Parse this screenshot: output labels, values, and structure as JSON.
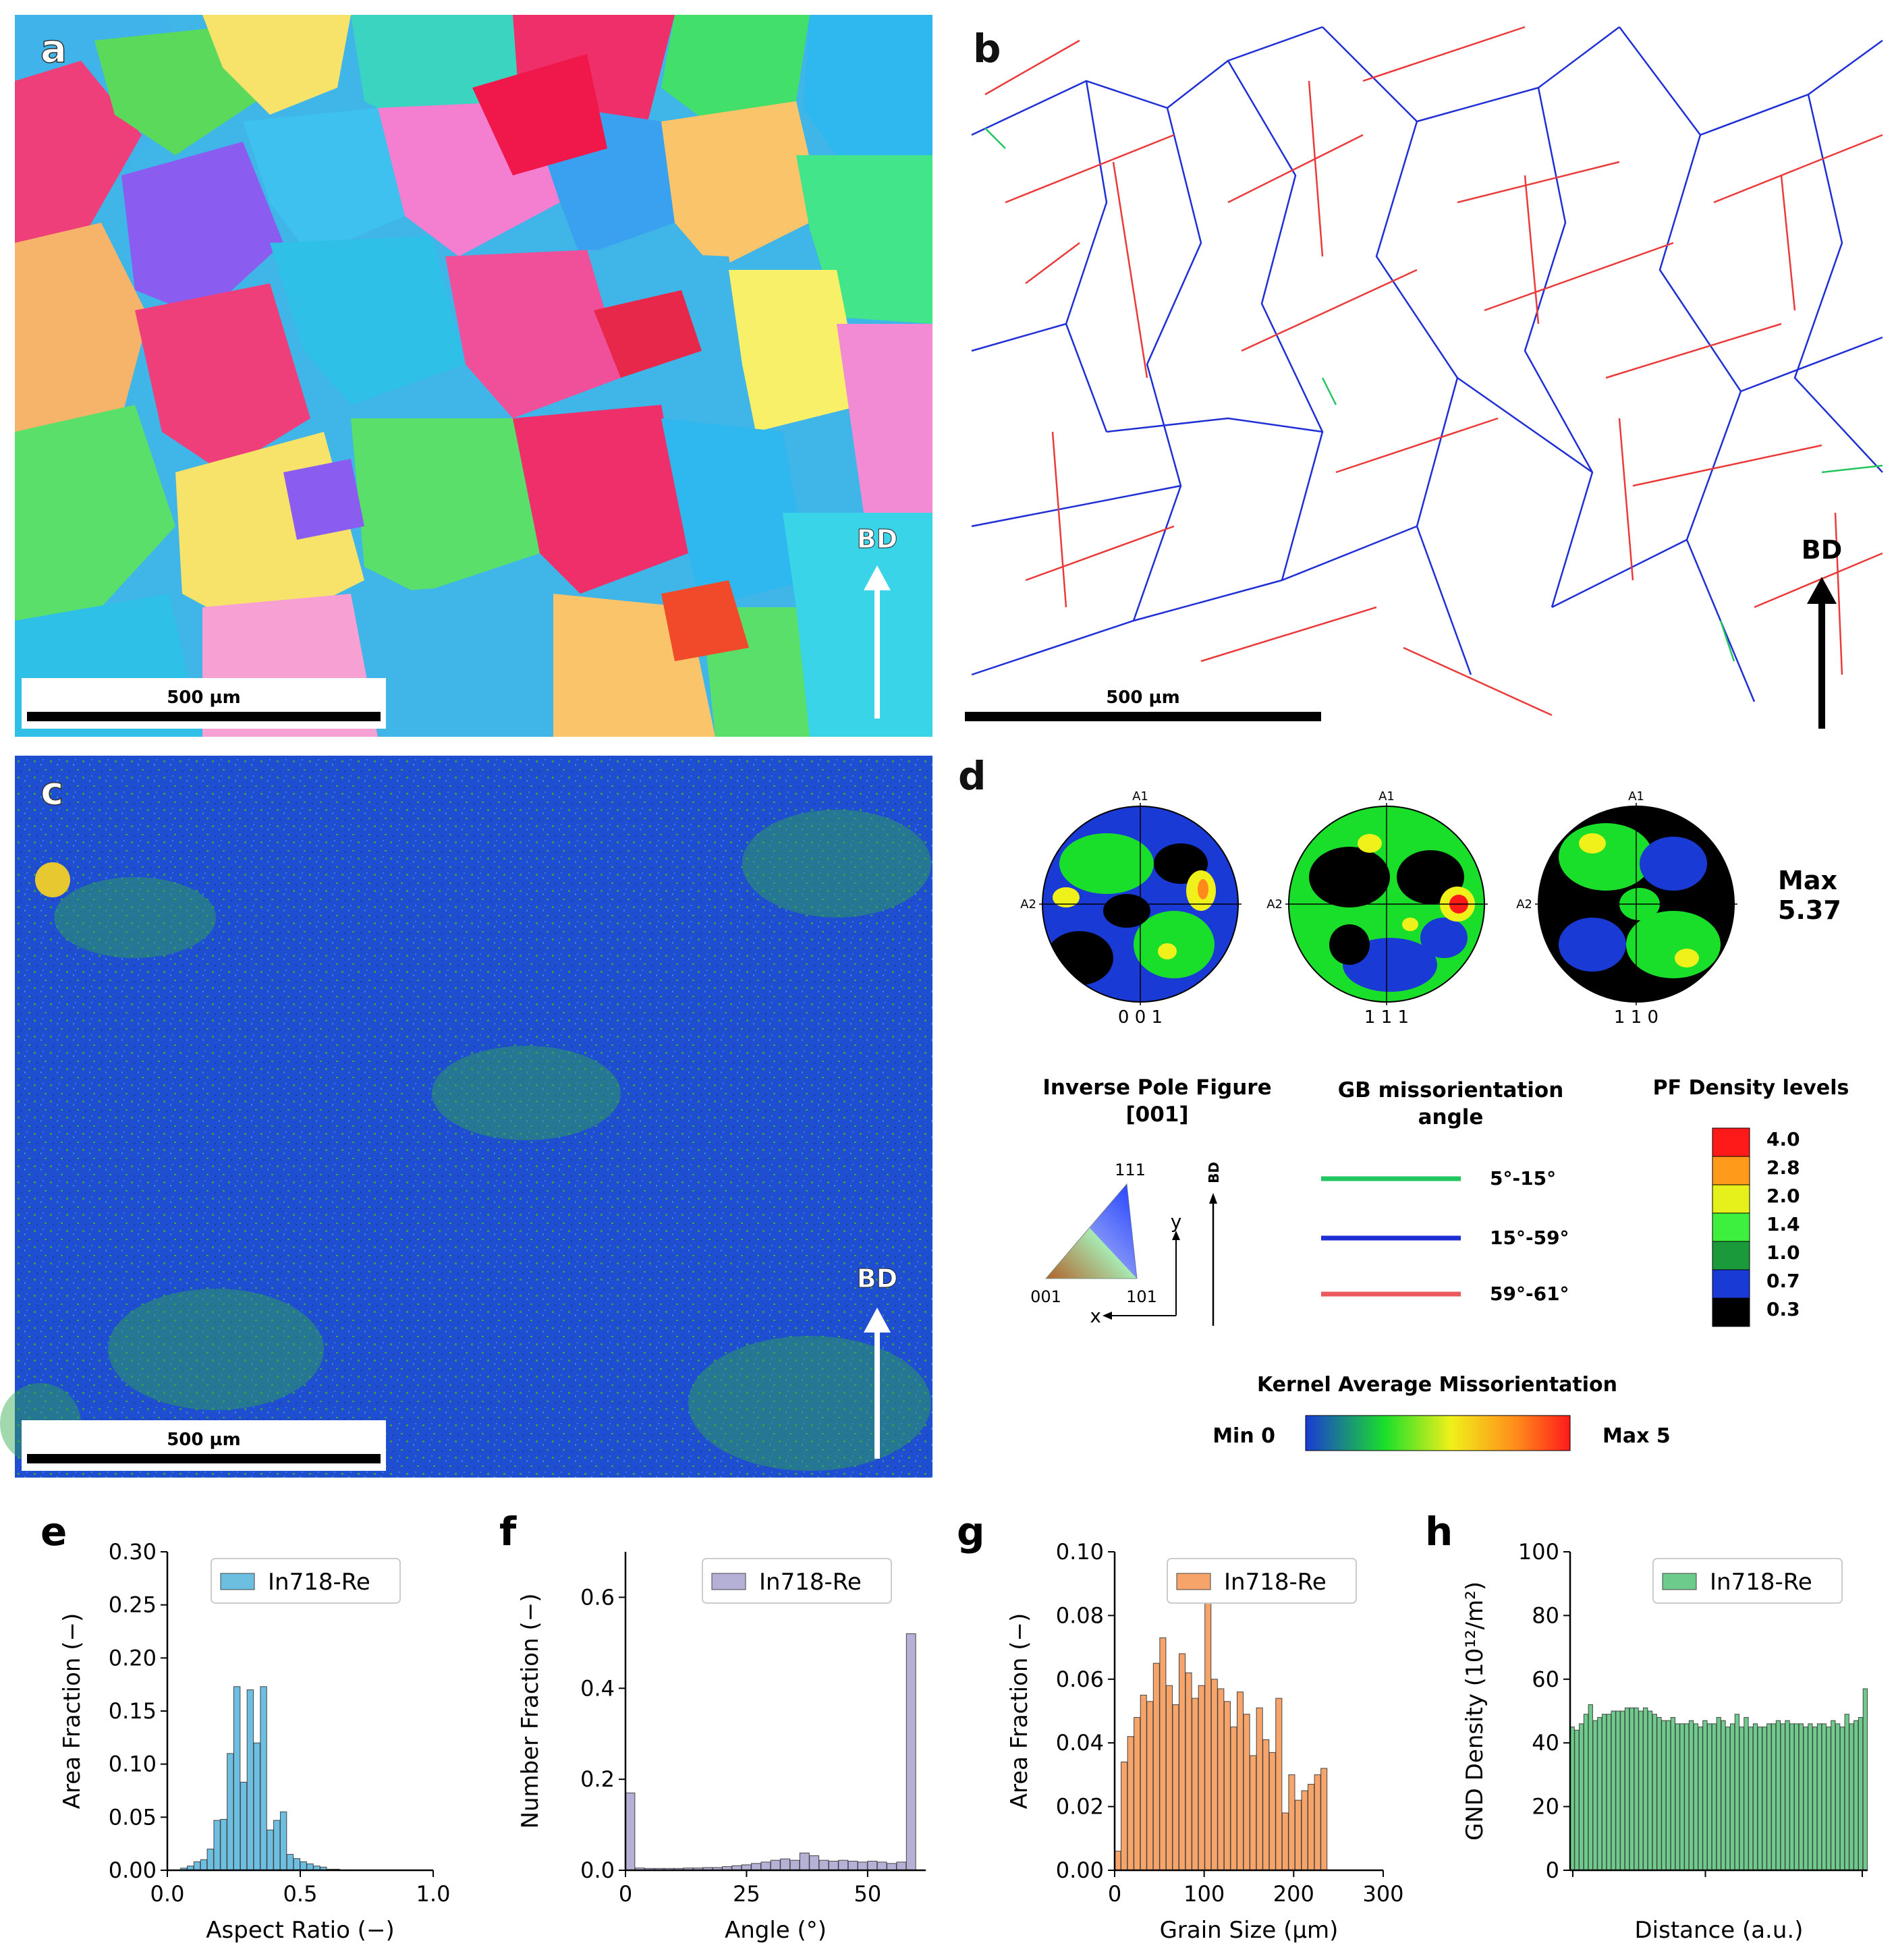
{
  "figure": {
    "panel_letters": [
      "a",
      "b",
      "c",
      "d",
      "e",
      "f",
      "g",
      "h"
    ],
    "scale_bar_label": "500 µm",
    "bd_label": "BD"
  },
  "colors": {
    "gb_low": "#22c55e",
    "gb_mid": "#1f2fd6",
    "gb_high": "#ea3a3a",
    "kam_background": "#1f4fd0",
    "hist_e": "#6cbfe0",
    "hist_f": "#b4b0d6",
    "hist_g": "#f6a46a",
    "hist_h": "#6dcb8b"
  },
  "legends": {
    "pole_figure": {
      "labels": [
        "0 0 1",
        "1 1 1",
        "1 1 0"
      ],
      "axis_a1": "A1",
      "axis_a2": "A2",
      "max_label": "Max",
      "max_value": "5.37"
    },
    "ipf": {
      "title_line1": "Inverse Pole Figure",
      "title_line2": "[001]",
      "corner_111": "111",
      "corner_001": "001",
      "corner_101": "101",
      "axis_x": "x",
      "axis_y": "y",
      "axis_bd": "BD"
    },
    "gb": {
      "title_line1": "GB missorientation",
      "title_line2": "angle",
      "items": [
        {
          "label": "5°-15°",
          "color": "#22c55e"
        },
        {
          "label": "15°-59°",
          "color": "#1f2fd6"
        },
        {
          "label": "59°-61°",
          "color": "#ea5a5a"
        }
      ]
    },
    "pf_density": {
      "title": "PF Density levels",
      "levels": [
        {
          "label": "4.0",
          "color": "#ff1a1a"
        },
        {
          "label": "2.8",
          "color": "#ff9a1a"
        },
        {
          "label": "2.0",
          "color": "#e6f01a"
        },
        {
          "label": "1.4",
          "color": "#3ef03e"
        },
        {
          "label": "1.0",
          "color": "#1a9a3a"
        },
        {
          "label": "0.7",
          "color": "#1a3ad6"
        },
        {
          "label": "0.3",
          "color": "#000000"
        }
      ]
    },
    "kam": {
      "title": "Kernel Average Missorientation",
      "min_label": "Min 0",
      "max_label": "Max 5"
    }
  },
  "chart_data": [
    {
      "panel": "e",
      "type": "bar",
      "legend": "In718-Re",
      "xlabel": "Aspect Ratio (−)",
      "ylabel": "Area Fraction (−)",
      "xlim": [
        0.0,
        1.0
      ],
      "ylim": [
        0.0,
        0.3
      ],
      "xticks": [
        "0.0",
        "0.5",
        "1.0"
      ],
      "xtick_values": [
        0.0,
        0.5,
        1.0
      ],
      "yticks": [
        "0.00",
        "0.05",
        "0.10",
        "0.15",
        "0.20",
        "0.25",
        "0.30"
      ],
      "ytick_values": [
        0.0,
        0.05,
        0.1,
        0.15,
        0.2,
        0.25,
        0.3
      ],
      "bin_start": 0.05,
      "bin_width": 0.025,
      "values": [
        0.002,
        0.004,
        0.008,
        0.01,
        0.02,
        0.047,
        0.048,
        0.11,
        0.173,
        0.083,
        0.17,
        0.12,
        0.173,
        0.038,
        0.047,
        0.055,
        0.015,
        0.011,
        0.008,
        0.006,
        0.004,
        0.003,
        0.001,
        0.001
      ]
    },
    {
      "panel": "f",
      "type": "bar",
      "legend": "In718-Re",
      "xlabel": "Angle (°)",
      "ylabel": "Number Fraction (−)",
      "xlim": [
        0,
        62
      ],
      "ylim": [
        0.0,
        0.7
      ],
      "xticks": [
        "0",
        "25",
        "50"
      ],
      "xtick_values": [
        0,
        25,
        50
      ],
      "yticks": [
        "0.0",
        "0.2",
        "0.4",
        "0.6"
      ],
      "ytick_values": [
        0.0,
        0.2,
        0.4,
        0.6
      ],
      "bin_start": 0,
      "bin_width": 2,
      "values": [
        0.17,
        0.005,
        0.004,
        0.004,
        0.004,
        0.004,
        0.005,
        0.005,
        0.006,
        0.006,
        0.008,
        0.01,
        0.012,
        0.015,
        0.018,
        0.022,
        0.025,
        0.022,
        0.038,
        0.032,
        0.022,
        0.02,
        0.022,
        0.02,
        0.018,
        0.02,
        0.018,
        0.015,
        0.018,
        0.52
      ]
    },
    {
      "panel": "g",
      "type": "bar",
      "legend": "In718-Re",
      "xlabel": "Grain Size (µm)",
      "ylabel": "Area Fraction (−)",
      "xlim": [
        0,
        300
      ],
      "ylim": [
        0.0,
        0.1
      ],
      "xticks": [
        "0",
        "100",
        "200",
        "300"
      ],
      "xtick_values": [
        0,
        100,
        200,
        300
      ],
      "yticks": [
        "0.00",
        "0.02",
        "0.04",
        "0.06",
        "0.08",
        "0.10"
      ],
      "ytick_values": [
        0.0,
        0.02,
        0.04,
        0.06,
        0.08,
        0.1
      ],
      "bin_start": 0,
      "bin_width": 7.2,
      "values": [
        0.006,
        0.034,
        0.042,
        0.048,
        0.055,
        0.053,
        0.065,
        0.073,
        0.058,
        0.052,
        0.068,
        0.062,
        0.054,
        0.058,
        0.087,
        0.06,
        0.057,
        0.053,
        0.045,
        0.056,
        0.049,
        0.036,
        0.051,
        0.041,
        0.037,
        0.054,
        0.018,
        0.03,
        0.022,
        0.025,
        0.027,
        0.03,
        0.032
      ]
    },
    {
      "panel": "h",
      "type": "bar",
      "legend": "In718-Re",
      "xlabel": "Distance (a.u.)",
      "ylabel": "GND Density (10¹²/m²)",
      "ylim": [
        0,
        100
      ],
      "yticks": [
        "0",
        "20",
        "40",
        "60",
        "80",
        "100"
      ],
      "ytick_values": [
        0,
        20,
        40,
        60,
        80,
        100
      ],
      "values": [
        45,
        44,
        46,
        49,
        52,
        47,
        48,
        49,
        49,
        50,
        50,
        50,
        51,
        51,
        51,
        50,
        51,
        50,
        49,
        48,
        47,
        47,
        48,
        46,
        46,
        46,
        47,
        46,
        45,
        47,
        46,
        46,
        48,
        47,
        45,
        46,
        49,
        45,
        48,
        45,
        46,
        45,
        45,
        46,
        46,
        47,
        46,
        47,
        46,
        46,
        46,
        45,
        46,
        45,
        46,
        46,
        45,
        47,
        46,
        45,
        49,
        46,
        47,
        48,
        57
      ]
    }
  ]
}
